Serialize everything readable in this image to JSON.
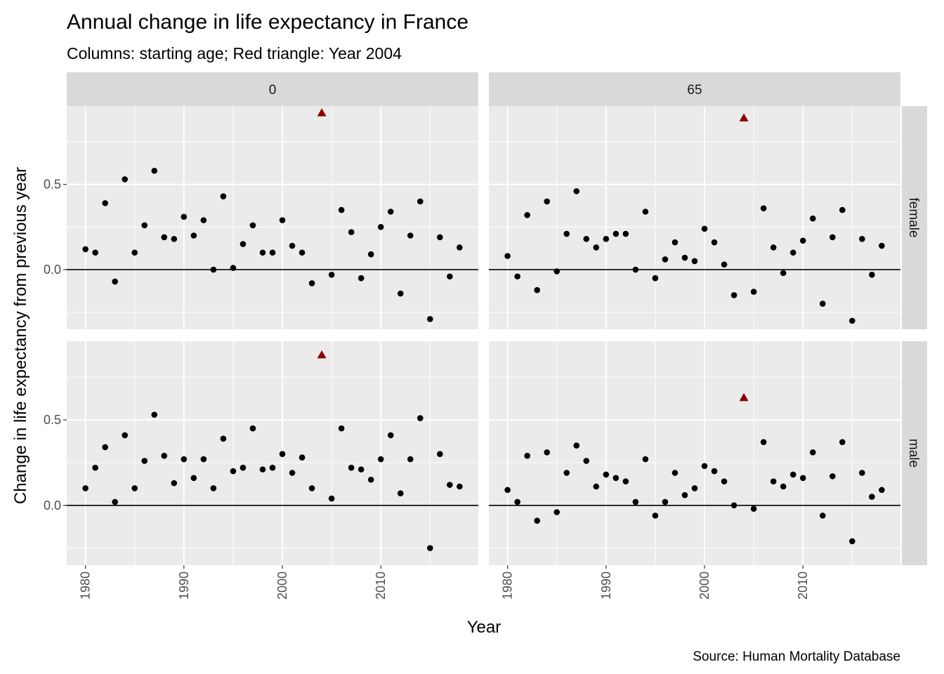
{
  "chart_data": {
    "type": "scatter",
    "title": "Annual change in life expectancy in France",
    "subtitle": "Columns: starting age; Red triangle: Year 2004",
    "caption": "Source: Human Mortality Database",
    "xlabel": "Year",
    "ylabel": "Change in life expectancy from previous year",
    "xlim": [
      1978.1,
      2019.9
    ],
    "ylim": [
      -0.35,
      0.96
    ],
    "x_ticks": [
      1980,
      1990,
      2000,
      2010
    ],
    "y_ticks": [
      0.0,
      0.5
    ],
    "y_tick_labels": [
      "0.0",
      "0.5"
    ],
    "reference_line": 0,
    "grid": true,
    "highlight": {
      "year": 2004,
      "shape": "triangle",
      "color": "#8b0000"
    },
    "point_color": "#000000",
    "columns": [
      "0",
      "65"
    ],
    "rows": [
      "female",
      "male"
    ],
    "panels": [
      {
        "col": "0",
        "row": "female",
        "x": [
          1980,
          1981,
          1982,
          1983,
          1984,
          1985,
          1986,
          1987,
          1988,
          1989,
          1990,
          1991,
          1992,
          1993,
          1994,
          1995,
          1996,
          1997,
          1998,
          1999,
          2000,
          2001,
          2002,
          2003,
          2004,
          2005,
          2006,
          2007,
          2008,
          2009,
          2010,
          2011,
          2012,
          2013,
          2014,
          2015,
          2016,
          2017,
          2018
        ],
        "y": [
          0.12,
          0.1,
          0.39,
          -0.07,
          0.53,
          0.1,
          0.26,
          0.58,
          0.19,
          0.18,
          0.31,
          0.2,
          0.29,
          0.0,
          0.43,
          0.01,
          0.15,
          0.26,
          0.1,
          0.1,
          0.29,
          0.14,
          0.1,
          -0.08,
          0.92,
          -0.03,
          0.35,
          0.22,
          -0.05,
          0.09,
          0.25,
          0.34,
          -0.14,
          0.2,
          0.4,
          -0.29,
          0.19,
          -0.04,
          0.13
        ]
      },
      {
        "col": "65",
        "row": "female",
        "x": [
          1980,
          1981,
          1982,
          1983,
          1984,
          1985,
          1986,
          1987,
          1988,
          1989,
          1990,
          1991,
          1992,
          1993,
          1994,
          1995,
          1996,
          1997,
          1998,
          1999,
          2000,
          2001,
          2002,
          2003,
          2004,
          2005,
          2006,
          2007,
          2008,
          2009,
          2010,
          2011,
          2012,
          2013,
          2014,
          2015,
          2016,
          2017,
          2018
        ],
        "y": [
          0.08,
          -0.04,
          0.32,
          -0.12,
          0.4,
          -0.01,
          0.21,
          0.46,
          0.18,
          0.13,
          0.18,
          0.21,
          0.21,
          0.0,
          0.34,
          -0.05,
          0.06,
          0.16,
          0.07,
          0.05,
          0.24,
          0.16,
          0.03,
          -0.15,
          0.89,
          -0.13,
          0.36,
          0.13,
          -0.02,
          0.1,
          0.17,
          0.3,
          -0.2,
          0.19,
          0.35,
          -0.3,
          0.18,
          -0.03,
          0.14
        ]
      },
      {
        "col": "0",
        "row": "male",
        "x": [
          1980,
          1981,
          1982,
          1983,
          1984,
          1985,
          1986,
          1987,
          1988,
          1989,
          1990,
          1991,
          1992,
          1993,
          1994,
          1995,
          1996,
          1997,
          1998,
          1999,
          2000,
          2001,
          2002,
          2003,
          2004,
          2005,
          2006,
          2007,
          2008,
          2009,
          2010,
          2011,
          2012,
          2013,
          2014,
          2015,
          2016,
          2017,
          2018
        ],
        "y": [
          0.1,
          0.22,
          0.34,
          0.02,
          0.41,
          0.1,
          0.26,
          0.53,
          0.29,
          0.13,
          0.27,
          0.16,
          0.27,
          0.1,
          0.39,
          0.2,
          0.22,
          0.45,
          0.21,
          0.22,
          0.3,
          0.19,
          0.28,
          0.1,
          0.88,
          0.04,
          0.45,
          0.22,
          0.21,
          0.15,
          0.27,
          0.41,
          0.07,
          0.27,
          0.51,
          -0.25,
          0.3,
          0.12,
          0.11
        ]
      },
      {
        "col": "65",
        "row": "male",
        "x": [
          1980,
          1981,
          1982,
          1983,
          1984,
          1985,
          1986,
          1987,
          1988,
          1989,
          1990,
          1991,
          1992,
          1993,
          1994,
          1995,
          1996,
          1997,
          1998,
          1999,
          2000,
          2001,
          2002,
          2003,
          2004,
          2005,
          2006,
          2007,
          2008,
          2009,
          2010,
          2011,
          2012,
          2013,
          2014,
          2015,
          2016,
          2017,
          2018
        ],
        "y": [
          0.09,
          0.02,
          0.29,
          -0.09,
          0.31,
          -0.04,
          0.19,
          0.35,
          0.26,
          0.11,
          0.18,
          0.16,
          0.14,
          0.02,
          0.27,
          -0.06,
          0.02,
          0.19,
          0.06,
          0.1,
          0.23,
          0.2,
          0.14,
          0.0,
          0.63,
          -0.02,
          0.37,
          0.14,
          0.11,
          0.18,
          0.16,
          0.31,
          -0.06,
          0.17,
          0.37,
          -0.21,
          0.19,
          0.05,
          0.09
        ]
      }
    ]
  }
}
